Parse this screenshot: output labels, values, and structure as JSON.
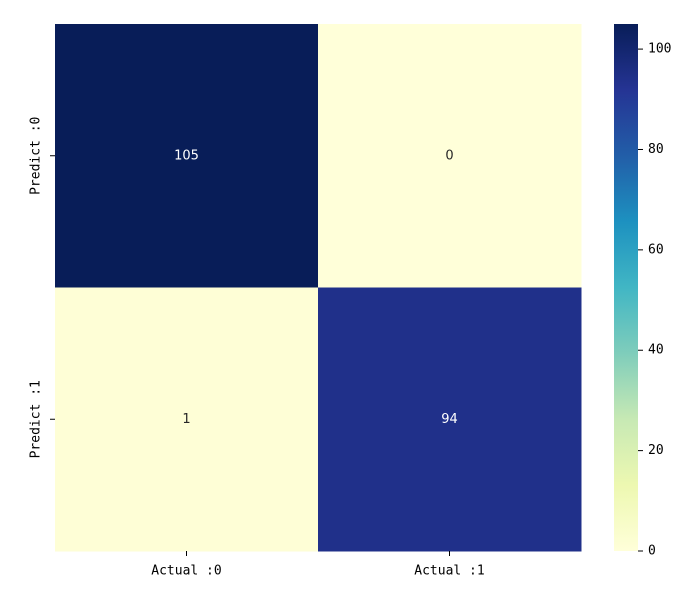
{
  "chart_data": {
    "type": "heatmap",
    "x_categories": [
      "Actual :0",
      "Actual :1"
    ],
    "y_categories": [
      "Predict :0",
      "Predict :1"
    ],
    "values": [
      [
        105,
        0
      ],
      [
        1,
        94
      ]
    ],
    "colormap": [
      "#ffffd9",
      "#edf8b1",
      "#c7e9b4",
      "#7fcdbb",
      "#41b6c4",
      "#1d91c0",
      "#225ea8",
      "#253494",
      "#081d58"
    ],
    "clim": [
      0,
      105
    ],
    "cticks": [
      0,
      20,
      40,
      60,
      80,
      100
    ]
  }
}
